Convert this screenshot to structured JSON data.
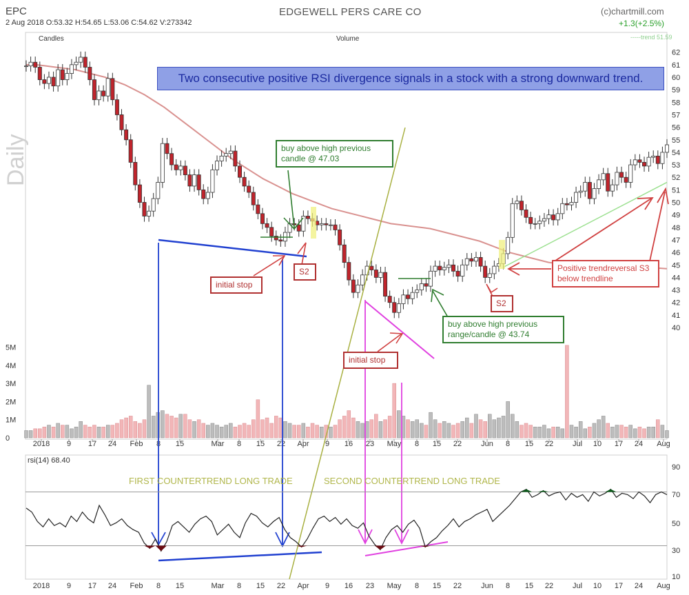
{
  "header": {
    "ticker": "EPC",
    "ohlc": "2 Aug 2018   O:53.32  H:54.65  L:53.06  C:54.62    V:273342",
    "company": "EDGEWELL PERS CARE CO",
    "copyright": "(c)chartmill.com",
    "change": "+1.3(+2.5%)",
    "trend_label": "-----trend 51.59",
    "legend_candles": "Candles",
    "legend_volume": "Volume",
    "period": "Daily"
  },
  "headline": "Two consecutive positive RSI divergence signals in a stock with a strong downward trend.",
  "annotations": {
    "buy1": "buy above high previous candle @ 47.03",
    "initial_stop1": "initial stop",
    "s2_first": "S2",
    "buy2": "buy above high previous range/candle @ 43.74",
    "initial_stop2": "initial stop",
    "s2_second": "S2",
    "reversal": "Positive trendreversal S3 below trendline"
  },
  "rsi": {
    "label": "rsi(14) 68.40",
    "first_trade": "FIRST COUNTERTREND LONG TRADE",
    "second_trade": "SECOND COUNTERTREND LONG TRADE",
    "levels": [
      "90",
      "70",
      "50",
      "30",
      "10"
    ]
  },
  "colors": {
    "up": "#ffffff",
    "down": "#c0242c",
    "moving_avg": "#d9918f",
    "trendline": "#9be08f",
    "blue": "#2040d0",
    "magenta": "#e040e0",
    "olive": "#a8b040",
    "arrow_red": "#d04040",
    "arrow_green": "#2f7d2f",
    "s2_highlight": "#f0f080"
  },
  "chart_data": {
    "type": "candlestick",
    "price_ticks": [
      40,
      41,
      42,
      43,
      44,
      45,
      46,
      47,
      48,
      49,
      50,
      51,
      52,
      53,
      54,
      55,
      56,
      57,
      58,
      59,
      60,
      61,
      62
    ],
    "volume_ticks": [
      "0",
      "1M",
      "2M",
      "3M",
      "4M",
      "5M"
    ],
    "x_ticks": [
      "2018",
      "9",
      "17",
      "24",
      "Feb",
      "8",
      "15",
      "Mar",
      "8",
      "15",
      "22",
      "Apr",
      "9",
      "16",
      "23",
      "May",
      "8",
      "15",
      "22",
      "Jun",
      "8",
      "15",
      "22",
      "Jul",
      "10",
      "17",
      "24",
      "Aug"
    ],
    "close": [
      60.9,
      61.2,
      60.8,
      59.8,
      59.5,
      60.0,
      59.3,
      60.6,
      59.8,
      60.3,
      61.0,
      61.2,
      61.6,
      60.8,
      59.8,
      58.2,
      58.9,
      58.5,
      59.9,
      58.2,
      57.0,
      55.8,
      55.0,
      53.2,
      51.4,
      50.0,
      48.9,
      49.3,
      50.3,
      51.6,
      54.7,
      53.9,
      53.0,
      52.6,
      52.9,
      52.2,
      51.3,
      52.2,
      51.0,
      50.3,
      50.8,
      52.6,
      53.3,
      53.7,
      53.9,
      54.1,
      52.9,
      52.0,
      51.3,
      50.8,
      49.8,
      49.1,
      48.3,
      48.0,
      47.3,
      47.0,
      46.9,
      47.6,
      48.3,
      48.2,
      47.7,
      48.9,
      48.7,
      48.5,
      48.2,
      48.3,
      48.2,
      48.2,
      47.8,
      46.6,
      45.2,
      43.8,
      42.8,
      43.4,
      44.2,
      44.9,
      44.6,
      44.0,
      44.4,
      42.5,
      42.0,
      41.2,
      41.9,
      42.6,
      42.3,
      42.8,
      43.0,
      43.5,
      43.3,
      44.5,
      44.9,
      44.6,
      44.8,
      45.0,
      44.5,
      44.1,
      45.0,
      45.5,
      45.3,
      45.6,
      44.9,
      44.0,
      44.3,
      44.9,
      45.1,
      45.9,
      47.2,
      49.9,
      50.1,
      49.4,
      48.8,
      48.3,
      48.3,
      48.5,
      48.7,
      49.0,
      48.6,
      49.1,
      49.9,
      49.8,
      50.0,
      50.8,
      50.9,
      51.6,
      50.3,
      51.1,
      51.8,
      52.3,
      50.9,
      51.4,
      52.4,
      52.0,
      51.6,
      53.0,
      53.4,
      53.2,
      52.9,
      53.6,
      53.7,
      53.1,
      54.0,
      54.6
    ],
    "volume_m": [
      0.4,
      0.4,
      0.5,
      0.5,
      0.6,
      0.7,
      0.6,
      0.8,
      0.7,
      0.7,
      0.5,
      0.6,
      0.9,
      0.7,
      0.6,
      0.7,
      0.6,
      0.6,
      0.7,
      0.7,
      0.8,
      1.0,
      1.1,
      1.2,
      0.9,
      0.8,
      1.0,
      2.9,
      1.2,
      1.4,
      1.5,
      1.3,
      1.2,
      1.1,
      1.3,
      1.3,
      1.0,
      0.9,
      1.0,
      0.8,
      0.7,
      0.8,
      0.7,
      0.6,
      0.7,
      0.8,
      0.6,
      0.7,
      0.8,
      0.7,
      1.0,
      2.1,
      1.0,
      1.1,
      0.8,
      1.2,
      1.1,
      0.9,
      0.8,
      0.7,
      0.7,
      0.8,
      0.6,
      0.8,
      0.7,
      0.6,
      0.7,
      0.6,
      0.7,
      1.0,
      1.2,
      1.5,
      1.1,
      0.9,
      0.8,
      0.9,
      1.0,
      1.3,
      0.9,
      1.0,
      1.2,
      3.0,
      1.5,
      1.2,
      1.0,
      0.9,
      1.0,
      0.8,
      0.7,
      1.4,
      1.0,
      0.8,
      0.9,
      0.8,
      0.7,
      0.8,
      0.9,
      1.1,
      0.8,
      1.3,
      1.0,
      0.9,
      1.3,
      1.0,
      1.1,
      1.2,
      2.0,
      1.3,
      0.9,
      0.7,
      0.8,
      0.7,
      0.6,
      0.6,
      0.7,
      0.5,
      0.6,
      0.6,
      0.5,
      5.1,
      0.7,
      0.6,
      0.9,
      0.5,
      0.6,
      0.8,
      1.0,
      1.2,
      0.8,
      0.6,
      0.7,
      0.7,
      0.6,
      0.7,
      0.5,
      0.6,
      0.5,
      0.6,
      0.6,
      1.0,
      0.7,
      0.4
    ],
    "moving_average": [
      61.0,
      61.0,
      60.9,
      60.8,
      60.7,
      60.6,
      60.4,
      60.2,
      60.0,
      59.7,
      59.4,
      59.0,
      58.6,
      58.1,
      57.6,
      57.0,
      56.4,
      55.8,
      55.2,
      54.6,
      54.0,
      53.4,
      52.9,
      52.4,
      51.9,
      51.5,
      51.1,
      50.7,
      50.4,
      50.1,
      49.8,
      49.5,
      49.3,
      49.1,
      48.9,
      48.7,
      48.5,
      48.3,
      48.2,
      48.1,
      48.0,
      47.9,
      47.7,
      47.5,
      47.3,
      47.1,
      46.9,
      46.6,
      46.3,
      46.0,
      45.8,
      45.6,
      45.4,
      45.2,
      45.1,
      45.0,
      44.9,
      44.85,
      44.8,
      44.8,
      44.8,
      44.8,
      44.8,
      44.8,
      44.75,
      44.7
    ],
    "trendline": [
      44.8,
      51.6
    ],
    "rsi_values": [
      58,
      55,
      48,
      44,
      50,
      45,
      47,
      44,
      52,
      48,
      55,
      50,
      47,
      60,
      53,
      45,
      47,
      50,
      45,
      42,
      40,
      32,
      28,
      35,
      26,
      33,
      45,
      48,
      44,
      40,
      46,
      50,
      52,
      48,
      38,
      42,
      46,
      40,
      36,
      47,
      54,
      52,
      47,
      44,
      48,
      51,
      42,
      36,
      33,
      29,
      35,
      43,
      50,
      52,
      48,
      51,
      46,
      50,
      45,
      43,
      47,
      37,
      31,
      27,
      36,
      42,
      45,
      40,
      46,
      49,
      43,
      29,
      33,
      36,
      41,
      45,
      50,
      44,
      48,
      50,
      53,
      55,
      57,
      48,
      52,
      56,
      60,
      65,
      70,
      72,
      66,
      68,
      71,
      67,
      69,
      70,
      64,
      69,
      66,
      68,
      63,
      70,
      67,
      69,
      72,
      66,
      69,
      68,
      65,
      70,
      67,
      62,
      68,
      70,
      68
    ]
  }
}
